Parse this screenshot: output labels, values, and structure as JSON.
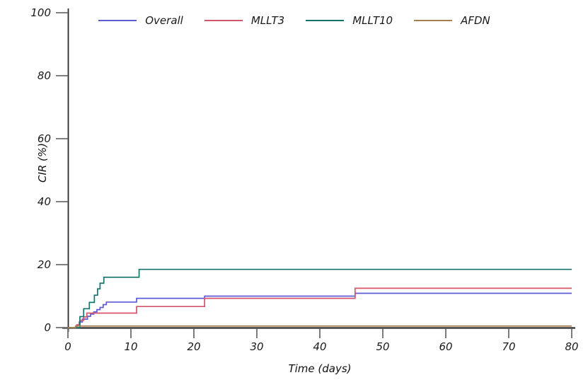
{
  "figure": {
    "background": "#ffffff",
    "axis_color": "#2b2b2b",
    "tick_color": "#6e6e6e",
    "label_color": "#111111"
  },
  "labels": {
    "x_axis_title": "Time (days)",
    "y_axis_title": "CIR (%)"
  },
  "legend": {
    "position": "top-center",
    "items": [
      {
        "label": "Overall",
        "color": "#5c5cd6"
      },
      {
        "label": "MLLT3",
        "color": "#d4556c"
      },
      {
        "label": "MLLT10",
        "color": "#15756e"
      },
      {
        "label": "AFDN",
        "color": "#a67e50"
      }
    ]
  },
  "chart_data": {
    "type": "line",
    "subtype": "step-cumulative-incidence",
    "title": "",
    "xlabel": "Time (days)",
    "ylabel": "CIR (%)",
    "xlim": [
      0,
      80
    ],
    "ylim": [
      0,
      100
    ],
    "x_ticks": [
      0,
      10,
      20,
      30,
      40,
      50,
      60,
      70,
      80
    ],
    "y_ticks": [
      0,
      20,
      40,
      60,
      80,
      100
    ],
    "grid": false,
    "legend_position": "top-center",
    "x_end": 80,
    "series": [
      {
        "name": "Overall",
        "color": "#5c5cd6",
        "steps": [
          [
            0,
            0
          ],
          [
            1.4,
            0.7
          ],
          [
            1.8,
            1.8
          ],
          [
            2.3,
            2.7
          ],
          [
            3.1,
            3.6
          ],
          [
            3.6,
            4.3
          ],
          [
            4.1,
            5.0
          ],
          [
            4.6,
            5.7
          ],
          [
            5.1,
            6.4
          ],
          [
            5.6,
            7.3
          ],
          [
            6.1,
            8.1
          ],
          [
            10.9,
            9.3
          ],
          [
            21.7,
            10.0
          ],
          [
            45.6,
            10.9
          ]
        ]
      },
      {
        "name": "MLLT3",
        "color": "#d4556c",
        "steps": [
          [
            0,
            0
          ],
          [
            1.4,
            0.9
          ],
          [
            1.9,
            2.3
          ],
          [
            2.5,
            3.4
          ],
          [
            3.0,
            4.6
          ],
          [
            10.9,
            6.7
          ],
          [
            21.7,
            9.3
          ],
          [
            45.6,
            12.5
          ]
        ]
      },
      {
        "name": "MLLT10",
        "color": "#15756e",
        "steps": [
          [
            0,
            0
          ],
          [
            1.9,
            3.5
          ],
          [
            2.5,
            6.0
          ],
          [
            3.4,
            8.0
          ],
          [
            4.2,
            10.3
          ],
          [
            4.7,
            12.3
          ],
          [
            5.1,
            14.1
          ],
          [
            5.7,
            16.0
          ],
          [
            11.3,
            18.5
          ]
        ]
      },
      {
        "name": "AFDN",
        "color": "#a67e50",
        "steps": [
          [
            0,
            0
          ],
          [
            1.2,
            0.5
          ]
        ]
      }
    ]
  }
}
